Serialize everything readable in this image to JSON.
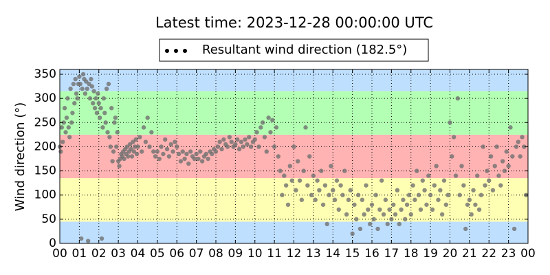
{
  "chart_data": {
    "type": "scatter",
    "title": "Latest time: 2023-12-28 00:00:00 UTC",
    "ylabel": "Wind direction (°)",
    "xlim": [
      0,
      24
    ],
    "xticks": [
      {
        "value": 0,
        "label": "00"
      },
      {
        "value": 1,
        "label": "01"
      },
      {
        "value": 2,
        "label": "02"
      },
      {
        "value": 3,
        "label": "03"
      },
      {
        "value": 4,
        "label": "04"
      },
      {
        "value": 5,
        "label": "05"
      },
      {
        "value": 6,
        "label": "06"
      },
      {
        "value": 7,
        "label": "07"
      },
      {
        "value": 8,
        "label": "08"
      },
      {
        "value": 9,
        "label": "09"
      },
      {
        "value": 10,
        "label": "10"
      },
      {
        "value": 11,
        "label": "11"
      },
      {
        "value": 12,
        "label": "12"
      },
      {
        "value": 13,
        "label": "13"
      },
      {
        "value": 14,
        "label": "14"
      },
      {
        "value": 15,
        "label": "15"
      },
      {
        "value": 16,
        "label": "16"
      },
      {
        "value": 17,
        "label": "17"
      },
      {
        "value": 18,
        "label": "18"
      },
      {
        "value": 19,
        "label": "19"
      },
      {
        "value": 20,
        "label": "20"
      },
      {
        "value": 21,
        "label": "21"
      },
      {
        "value": 22,
        "label": "22"
      },
      {
        "value": 23,
        "label": "23"
      },
      {
        "value": 24,
        "label": "00"
      }
    ],
    "ylim": [
      0,
      360
    ],
    "yticks": [
      0,
      50,
      100,
      150,
      200,
      250,
      300,
      350
    ],
    "grid": true,
    "legend_position": "top",
    "legend_marker_color": "#000000",
    "bands": [
      {
        "from": 0,
        "to": 45,
        "color": "#bfdfff"
      },
      {
        "from": 45,
        "to": 135,
        "color": "#ffffb3"
      },
      {
        "from": 135,
        "to": 225,
        "color": "#ffb3b3"
      },
      {
        "from": 225,
        "to": 315,
        "color": "#b3ffb3"
      },
      {
        "from": 315,
        "to": 360,
        "color": "#bfdfff"
      }
    ],
    "series": [
      {
        "name": "Resultant wind direction (182.5°)",
        "color": "#707070",
        "x": [
          0,
          0.05,
          0.1,
          0.15,
          0.2,
          0.25,
          0.3,
          0.35,
          0.4,
          0.45,
          0.5,
          0.55,
          0.6,
          0.65,
          0.7,
          0.75,
          0.8,
          0.85,
          0.9,
          0.95,
          1,
          1.05,
          1.1,
          1.15,
          1.2,
          1.25,
          1.3,
          1.35,
          1.4,
          1.45,
          1.5,
          1.55,
          1.6,
          1.65,
          1.7,
          1.75,
          1.8,
          1.85,
          1.9,
          1.95,
          2,
          2.05,
          2.1,
          2.15,
          2.2,
          2.25,
          2.3,
          2.35,
          2.4,
          2.45,
          2.5,
          2.55,
          2.6,
          2.65,
          2.7,
          2.75,
          2.8,
          2.85,
          2.9,
          2.95,
          3,
          3.05,
          3.1,
          3.15,
          3.2,
          3.25,
          3.3,
          3.35,
          3.4,
          3.45,
          3.5,
          3.55,
          3.6,
          3.65,
          3.7,
          3.75,
          3.8,
          3.85,
          3.9,
          3.95,
          4,
          4.1,
          4.2,
          4.3,
          4.4,
          4.5,
          4.6,
          4.7,
          4.8,
          4.9,
          5,
          5.1,
          5.2,
          5.3,
          5.4,
          5.5,
          5.6,
          5.7,
          5.8,
          5.9,
          6,
          6.1,
          6.2,
          6.3,
          6.4,
          6.5,
          6.6,
          6.7,
          6.8,
          6.9,
          7,
          7.1,
          7.2,
          7.3,
          7.4,
          7.5,
          7.6,
          7.7,
          7.8,
          7.9,
          8,
          8.1,
          8.2,
          8.3,
          8.4,
          8.5,
          8.6,
          8.7,
          8.8,
          8.9,
          9,
          9.1,
          9.2,
          9.3,
          9.4,
          9.5,
          9.6,
          9.7,
          9.8,
          9.9,
          10,
          10.1,
          10.2,
          10.3,
          10.4,
          10.5,
          10.6,
          10.7,
          10.8,
          10.9,
          11,
          11.1,
          11.2,
          11.3,
          11.4,
          11.5,
          11.6,
          11.7,
          11.8,
          11.9,
          12,
          12.1,
          12.2,
          12.3,
          12.4,
          12.5,
          12.6,
          12.7,
          12.8,
          12.9,
          13,
          13.1,
          13.2,
          13.3,
          13.4,
          13.5,
          13.6,
          13.7,
          13.8,
          13.9,
          14,
          14.1,
          14.2,
          14.3,
          14.4,
          14.5,
          14.6,
          14.7,
          14.8,
          14.9,
          15,
          15.1,
          15.2,
          15.3,
          15.4,
          15.5,
          15.6,
          15.7,
          15.8,
          15.9,
          16,
          16.1,
          16.2,
          16.3,
          16.4,
          16.5,
          16.6,
          16.7,
          16.8,
          16.9,
          17,
          17.1,
          17.2,
          17.3,
          17.4,
          17.5,
          17.6,
          17.7,
          17.8,
          17.9,
          18,
          18.1,
          18.2,
          18.3,
          18.4,
          18.5,
          18.6,
          18.7,
          18.8,
          18.9,
          19,
          19.1,
          19.2,
          19.3,
          19.4,
          19.5,
          19.6,
          19.7,
          19.8,
          19.9,
          20,
          20.1,
          20.2,
          20.3,
          20.4,
          20.5,
          20.6,
          20.7,
          20.8,
          20.9,
          21,
          21.1,
          21.2,
          21.3,
          21.4,
          21.5,
          21.6,
          21.7,
          21.8,
          21.9,
          22,
          22.1,
          22.2,
          22.3,
          22.4,
          22.5,
          22.6,
          22.7,
          22.8,
          22.9,
          23,
          23.1,
          23.2,
          23.3,
          23.4,
          23.5,
          23.6,
          23.7,
          23.8,
          23.9
        ],
        "values": [
          200,
          190,
          240,
          210,
          250,
          280,
          230,
          260,
          300,
          240,
          220,
          320,
          250,
          270,
          330,
          290,
          340,
          310,
          300,
          330,
          345,
          330,
          10,
          320,
          350,
          340,
          310,
          335,
          320,
          5,
          330,
          300,
          340,
          325,
          290,
          315,
          280,
          300,
          270,
          310,
          290,
          260,
          280,
          10,
          240,
          300,
          270,
          250,
          320,
          230,
          330,
          220,
          200,
          280,
          170,
          190,
          250,
          260,
          200,
          230,
          170,
          160,
          175,
          185,
          180,
          190,
          175,
          195,
          185,
          200,
          180,
          190,
          205,
          195,
          180,
          210,
          190,
          200,
          215,
          185,
          200,
          220,
          190,
          240,
          210,
          260,
          200,
          230,
          190,
          180,
          190,
          175,
          200,
          185,
          215,
          195,
          180,
          205,
          190,
          210,
          200,
          185,
          170,
          190,
          175,
          185,
          165,
          190,
          180,
          175,
          185,
          175,
          190,
          170,
          180,
          185,
          175,
          190,
          185,
          195,
          190,
          200,
          210,
          195,
          215,
          205,
          200,
          220,
          210,
          200,
          205,
          215,
          195,
          210,
          200,
          215,
          205,
          220,
          200,
          210,
          215,
          230,
          200,
          240,
          250,
          220,
          190,
          260,
          230,
          255,
          200,
          240,
          180,
          150,
          100,
          140,
          120,
          80,
          160,
          130,
          200,
          110,
          170,
          130,
          90,
          150,
          240,
          120,
          180,
          100,
          140,
          90,
          130,
          110,
          150,
          80,
          120,
          40,
          100,
          160,
          110,
          90,
          130,
          70,
          120,
          100,
          150,
          60,
          90,
          110,
          20,
          80,
          50,
          100,
          30,
          90,
          60,
          120,
          70,
          40,
          80,
          50,
          100,
          30,
          70,
          130,
          60,
          90,
          40,
          70,
          50,
          80,
          60,
          110,
          40,
          70,
          90,
          50,
          80,
          100,
          60,
          120,
          90,
          150,
          100,
          70,
          130,
          110,
          80,
          140,
          100,
          70,
          120,
          160,
          90,
          110,
          60,
          130,
          80,
          100,
          250,
          180,
          220,
          140,
          300,
          100,
          160,
          120,
          30,
          80,
          90,
          60,
          110,
          80,
          140,
          70,
          100,
          200,
          120,
          150,
          130,
          180,
          110,
          160,
          200,
          140,
          120,
          170,
          150,
          190,
          160,
          240,
          180,
          30,
          200,
          210,
          180,
          220,
          200,
          100
        ]
      }
    ]
  }
}
